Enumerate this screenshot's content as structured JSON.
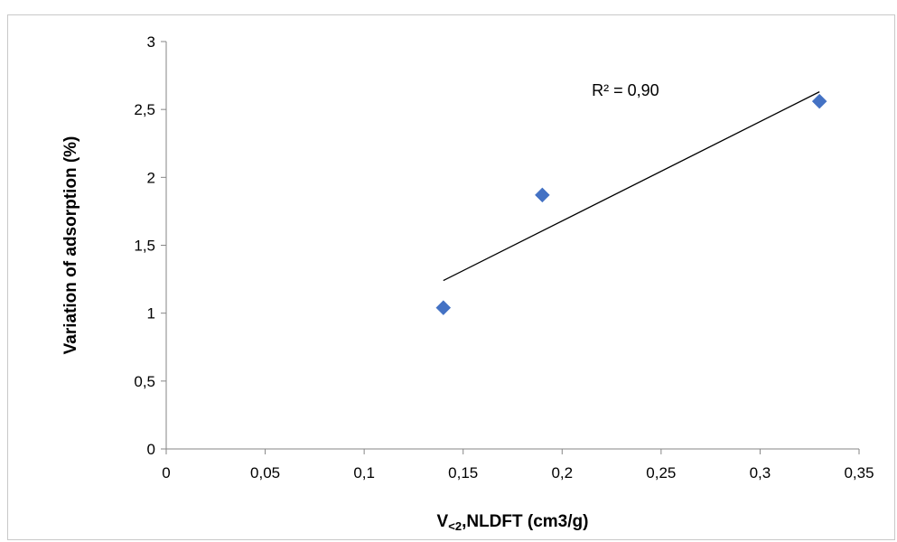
{
  "chart_data": {
    "type": "scatter",
    "xlabel": "V<2,NLDFT (cm3/g)",
    "xlabel_main": "V",
    "xlabel_sub": "<2",
    "xlabel_rest": ",NLDFT (cm3/g)",
    "ylabel": "Variation of adsorption (%)",
    "xlim": [
      0,
      0.35
    ],
    "ylim": [
      0,
      3
    ],
    "x_ticks": [
      0,
      0.05,
      0.1,
      0.15,
      0.2,
      0.25,
      0.3,
      0.35
    ],
    "x_tick_labels": [
      "0",
      "0,05",
      "0,1",
      "0,15",
      "0,2",
      "0,25",
      "0,3",
      "0,35"
    ],
    "y_ticks": [
      0,
      0.5,
      1,
      1.5,
      2,
      2.5,
      3
    ],
    "y_tick_labels": [
      "0",
      "0,5",
      "1",
      "1,5",
      "2",
      "2,5",
      "3"
    ],
    "grid": false,
    "series": [
      {
        "marker": "diamond",
        "color": "#4472C4",
        "points": [
          {
            "x": 0.14,
            "y": 1.04
          },
          {
            "x": 0.19,
            "y": 1.87
          },
          {
            "x": 0.33,
            "y": 2.56
          }
        ]
      }
    ],
    "trendline": {
      "type": "linear",
      "color": "#000000",
      "from": {
        "x": 0.14,
        "y": 1.24
      },
      "to": {
        "x": 0.33,
        "y": 2.63
      },
      "annotation": "R² = 0,90",
      "annotation_anchor": {
        "x": 0.215,
        "y": 2.64
      }
    }
  }
}
